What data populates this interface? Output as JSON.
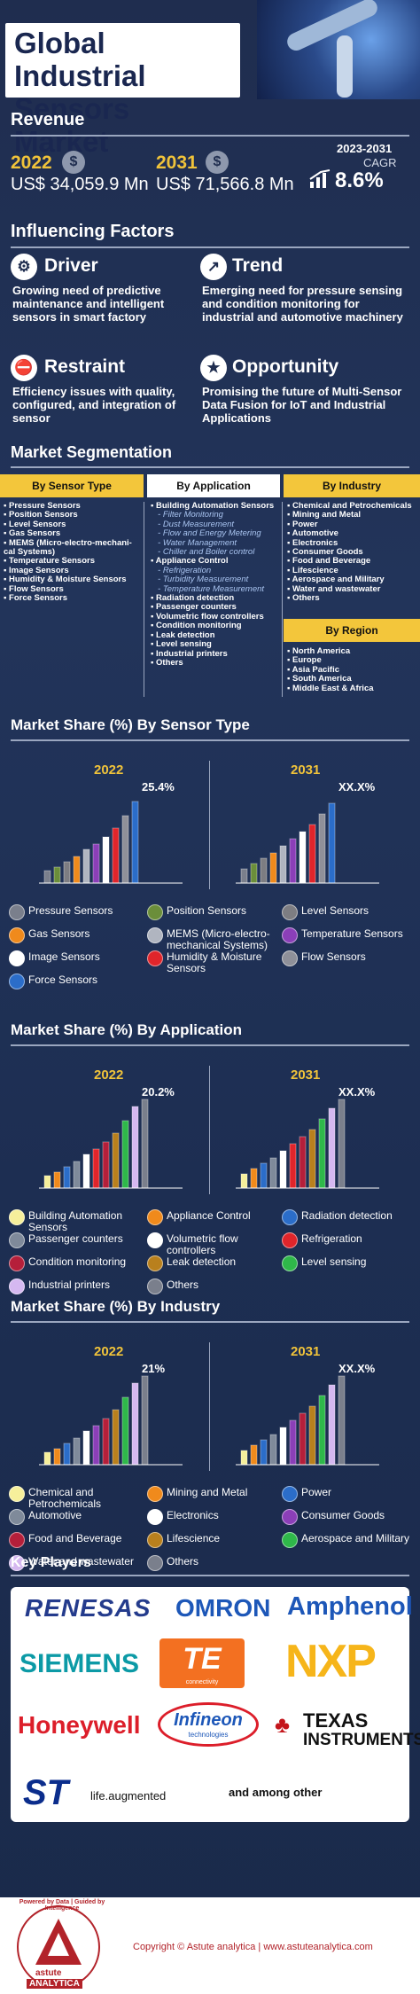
{
  "title": "Global Industrial Sensors Market",
  "revenue": {
    "heading": "Revenue",
    "y1": "2022",
    "v1": "US$ 34,059.9 Mn",
    "y2": "2031",
    "v2": "US$ 71,566.8 Mn",
    "cagr_years": "2023-2031",
    "cagr_label": "CAGR",
    "cagr_value": "8.6%",
    "coin_symbol": "$"
  },
  "factors": {
    "heading": "Influencing Factors",
    "driver": {
      "title": "Driver",
      "text": "Growing need of predictive maintenance and intelligent sensors in smart factory"
    },
    "trend": {
      "title": "Trend",
      "text": "Emerging need for pressure sensing and condition monitoring for industrial and automotive machinery"
    },
    "restraint": {
      "title": "Restraint",
      "text": "Efficiency issues with quality, configured, and integration of sensor"
    },
    "opportunity": {
      "title": "Opportunity",
      "text": "Promising the future of Multi-Sensor Data Fusion for IoT and Industrial Applications"
    }
  },
  "segmentation": {
    "heading": "Market Segmentation",
    "col1": {
      "title": "By Sensor Type",
      "color": "#f3c63b",
      "items": [
        "Pressure Sensors",
        "Position Sensors",
        "Level Sensors",
        "Gas Sensors",
        "MEMS (Micro-electro-mechani-cal Systems)",
        "Temperature Sensors",
        "Image Sensors",
        "Humidity & Moisture Sensors",
        "Flow Sensors",
        "Force Sensors"
      ]
    },
    "col2": {
      "title": "By Application",
      "color": "#ffffff",
      "items": [
        {
          "t": "Building Automation Sensors",
          "sub": false
        },
        {
          "t": "Filter Monitoring",
          "sub": true
        },
        {
          "t": "Dust Measurement",
          "sub": true
        },
        {
          "t": "Flow and Energy Metering",
          "sub": true
        },
        {
          "t": "Water Management",
          "sub": true
        },
        {
          "t": "Chiller and Boiler control",
          "sub": true
        },
        {
          "t": "Appliance Control",
          "sub": false
        },
        {
          "t": "Refrigeration",
          "sub": true
        },
        {
          "t": "Turbidity Measurement",
          "sub": true
        },
        {
          "t": "Temperature Measurement",
          "sub": true
        },
        {
          "t": "Radiation detection",
          "sub": false
        },
        {
          "t": "Passenger counters",
          "sub": false
        },
        {
          "t": "Volumetric flow controllers",
          "sub": false
        },
        {
          "t": "Condition monitoring",
          "sub": false
        },
        {
          "t": "Leak detection",
          "sub": false
        },
        {
          "t": "Level sensing",
          "sub": false
        },
        {
          "t": "Industrial printers",
          "sub": false
        },
        {
          "t": "Others",
          "sub": false
        }
      ]
    },
    "col3": {
      "title": "By Industry",
      "color": "#f3c63b",
      "items": [
        "Chemical and Petrochemicals",
        "Mining and Metal",
        "Power",
        "Automotive",
        "Electronics",
        "Consumer Goods",
        "Food and Beverage",
        "Lifescience",
        "Aerospace and Military",
        "Water and wastewater",
        "Others"
      ]
    },
    "col4": {
      "title": "By Region",
      "color": "#f3c63b",
      "items": [
        "North America",
        "Europe",
        "Asia Pacific",
        "South America",
        "Middle East & Africa"
      ]
    }
  },
  "charts": [
    {
      "heading": "Market Share (%) By Sensor Type",
      "y1": "2022",
      "y2": "2031",
      "label1": "25.4%",
      "label2": "XX.X%",
      "legend": [
        {
          "label": "Pressure Sensors",
          "color": "#7a7f8c"
        },
        {
          "label": "Position Sensors",
          "color": "#6b8e3a"
        },
        {
          "label": "Level Sensors",
          "color": "#7d7d82"
        },
        {
          "label": "Gas Sensors",
          "color": "#f08a1c"
        },
        {
          "label": "MEMS (Micro-electro-mechanical Systems)",
          "color": "#b0b5c0"
        },
        {
          "label": "Temperature Sensors",
          "color": "#8b3fb8"
        },
        {
          "label": "Image Sensors",
          "color": "#ffffff"
        },
        {
          "label": "Humidity & Moisture Sensors",
          "color": "#e0252b"
        },
        {
          "label": "Flow Sensors",
          "color": "#8f9099"
        },
        {
          "label": "Force Sensors",
          "color": "#2b6dc9"
        }
      ]
    },
    {
      "heading": "Market Share (%) By Application",
      "y1": "2022",
      "y2": "2031",
      "label1": "20.2%",
      "label2": "XX.X%",
      "legend": [
        {
          "label": "Building Automation Sensors",
          "color": "#f6ef9b"
        },
        {
          "label": "Appliance Control",
          "color": "#f08a1c"
        },
        {
          "label": "Radiation detection",
          "color": "#2b6dc9"
        },
        {
          "label": "Passenger counters",
          "color": "#7f8a9a"
        },
        {
          "label": "Volumetric flow controllers",
          "color": "#ffffff"
        },
        {
          "label": "Refrigeration",
          "color": "#e0252b"
        },
        {
          "label": "Condition monitoring",
          "color": "#b51f3a"
        },
        {
          "label": "Leak detection",
          "color": "#b9801d"
        },
        {
          "label": "Level sensing",
          "color": "#2fb84a"
        },
        {
          "label": "Industrial printers",
          "color": "#d5b8f0"
        },
        {
          "label": "Others",
          "color": "#7a7f8c"
        }
      ]
    },
    {
      "heading": "Market Share (%) By Industry",
      "y1": "2022",
      "y2": "2031",
      "label1": "21%",
      "label2": "XX.X%",
      "legend": [
        {
          "label": "Chemical and Petrochemicals",
          "color": "#f6ef9b"
        },
        {
          "label": "Mining and Metal",
          "color": "#f08a1c"
        },
        {
          "label": "Power",
          "color": "#2b6dc9"
        },
        {
          "label": "Automotive",
          "color": "#7f8a9a"
        },
        {
          "label": "Electronics",
          "color": "#ffffff"
        },
        {
          "label": "Consumer Goods",
          "color": "#8b3fb8"
        },
        {
          "label": "Food and Beverage",
          "color": "#b51f3a"
        },
        {
          "label": "Lifescience",
          "color": "#b9801d"
        },
        {
          "label": "Aerospace and Military",
          "color": "#2fb84a"
        },
        {
          "label": "Water and wastewater",
          "color": "#d5b8f0"
        },
        {
          "label": "Others",
          "color": "#7a7f8c"
        }
      ]
    }
  ],
  "players": {
    "heading": "Key Players",
    "logos": [
      "RENESAS",
      "OMRON",
      "Amphenol",
      "SIEMENS",
      "TE",
      "NXP",
      "Honeywell",
      "Infineon",
      "TEXAS",
      "INSTRUMENTS",
      "ST",
      "life.augmented"
    ],
    "infineon_sub": "technologies",
    "te_sub": "connectivity",
    "and_more": "and among other"
  },
  "footer": {
    "copyright": "Copyright © Astute analytica | www.astuteanalytica.com",
    "brand_top": "astute",
    "brand_bottom": "ANALYTICA",
    "tagline": "Powered by Data | Guided by Intelligence"
  }
}
